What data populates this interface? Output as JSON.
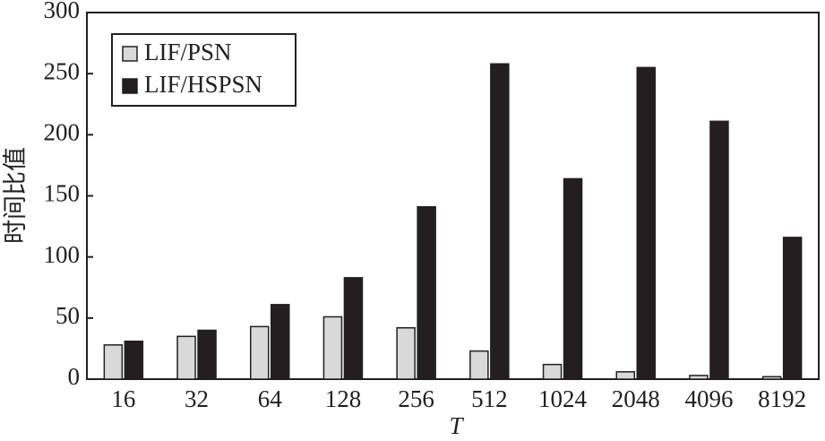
{
  "chart_data": {
    "type": "bar",
    "x_label": "T",
    "y_label": "时间比值",
    "categories": [
      "16",
      "32",
      "64",
      "128",
      "256",
      "512",
      "1024",
      "2048",
      "4096",
      "8192"
    ],
    "series": [
      {
        "name": "LIF/PSN",
        "color": "#d9d9d9",
        "values": [
          28,
          35,
          43,
          51,
          42,
          23,
          12,
          6,
          3,
          2
        ]
      },
      {
        "name": "LIF/HSPSN",
        "color": "#231f20",
        "values": [
          31,
          40,
          61,
          83,
          141,
          258,
          164,
          255,
          211,
          116
        ]
      }
    ],
    "ylim": [
      0,
      300
    ],
    "yticks": [
      0,
      50,
      100,
      150,
      200,
      250,
      300
    ],
    "legend": "upper left",
    "grid": false
  }
}
